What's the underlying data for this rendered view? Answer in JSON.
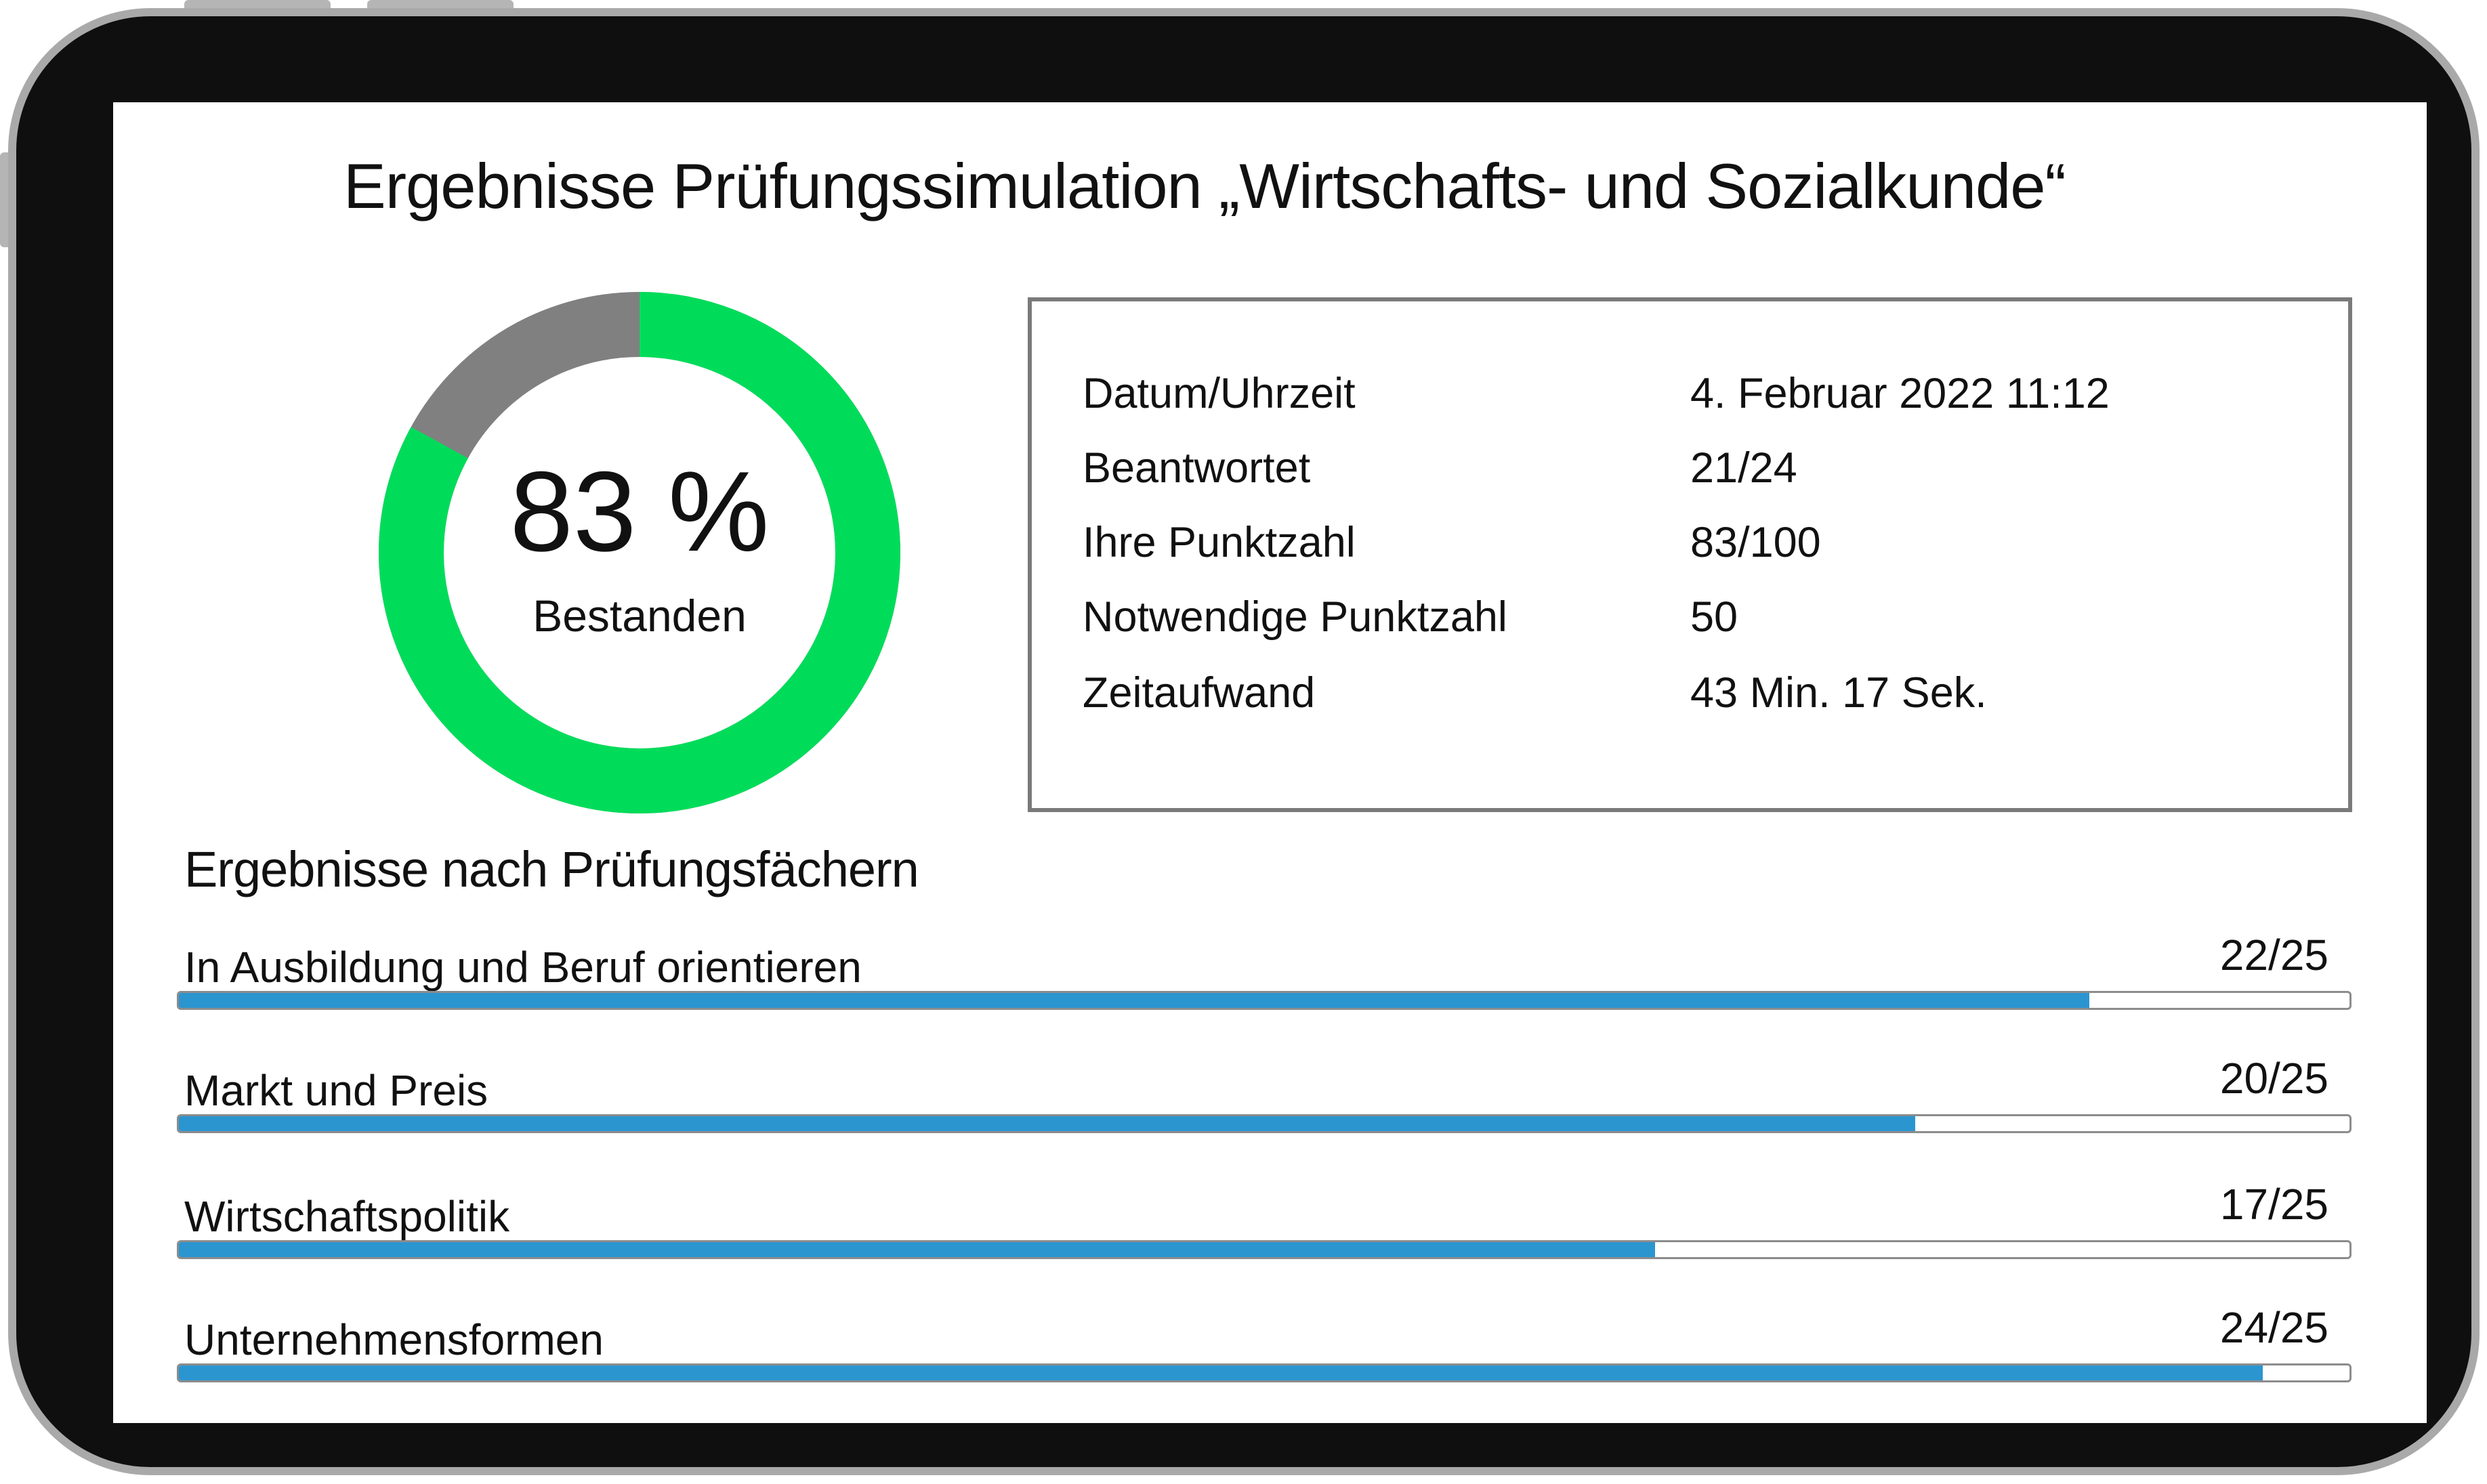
{
  "page": {
    "title": "Ergebnisse Prüfungssimulation „Wirtschafts- und Sozialkunde“"
  },
  "summary": {
    "percent_label": "83 %",
    "percent_value": 83,
    "status": "Bestanden",
    "colors": {
      "achieved": "#00dc5a",
      "remaining": "#808080"
    }
  },
  "details": [
    {
      "key": "Datum/Uhrzeit",
      "value": "4. Februar 2022 11:12"
    },
    {
      "key": "Beantwortet",
      "value": "21/24"
    },
    {
      "key": "Ihre Punktzahl",
      "value": "83/100"
    },
    {
      "key": "Notwendige Punktzahl",
      "value": "50"
    },
    {
      "key": "Zeitaufwand",
      "value": "43 Min. 17 Sek."
    }
  ],
  "subjects_section": {
    "heading": "Ergebnisse nach Prüfungsfächern",
    "bar_color": "#2b95d0",
    "items": [
      {
        "name": "In Ausbildung und Beruf orientieren",
        "score": "22/25",
        "achieved": 22,
        "max": 25
      },
      {
        "name": "Markt und Preis",
        "score": "20/25",
        "achieved": 20,
        "max": 25
      },
      {
        "name": "Wirtschaftspolitik",
        "score": "17/25",
        "achieved": 17,
        "max": 25
      },
      {
        "name": "Unternehmensformen",
        "score": "24/25",
        "achieved": 24,
        "max": 25
      }
    ]
  }
}
